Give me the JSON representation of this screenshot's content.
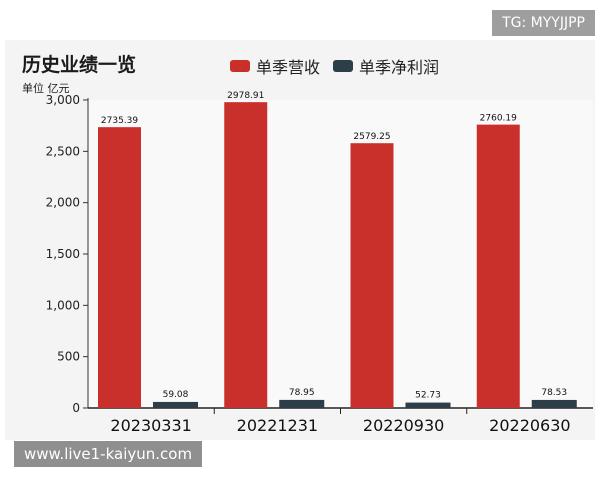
{
  "title": "历史业绩一览",
  "unit_label": "单位 亿元",
  "watermark_top": "TG: MYYJJPP",
  "watermark_bottom": "www.live1-kaiyun.com",
  "legend": [
    {
      "name": "单季营收",
      "color": "#c9302c"
    },
    {
      "name": "单季净利润",
      "color": "#2c3e48"
    }
  ],
  "chart_data": {
    "type": "bar",
    "categories": [
      "20230331",
      "20221231",
      "20220930",
      "20220630"
    ],
    "series": [
      {
        "name": "单季营收",
        "values": [
          2735.39,
          2978.91,
          2579.25,
          2760.19
        ],
        "labels": [
          "2735.39",
          "2978.91",
          "2579.25",
          "2760.19"
        ]
      },
      {
        "name": "单季净利润",
        "values": [
          59.08,
          78.95,
          52.73,
          78.53
        ],
        "labels": [
          "59.08",
          "78.95",
          "52.73",
          "78.53"
        ]
      }
    ],
    "yticks": [
      0,
      500,
      1000,
      1500,
      2000,
      2500,
      3000
    ],
    "ytick_labels": [
      "0",
      "500",
      "1,000",
      "1,500",
      "2,000",
      "2,500",
      "3,000"
    ],
    "ylim": [
      0,
      3000
    ],
    "grid": false
  }
}
